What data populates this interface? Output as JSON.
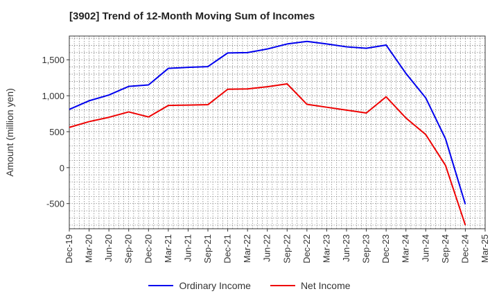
{
  "chart_data": {
    "type": "line",
    "title": "[3902]  Trend of 12-Month Moving Sum of Incomes",
    "xlabel": "",
    "ylabel": "Amount (million yen)",
    "ylim": [
      -850,
      1830
    ],
    "yticks": [
      -500,
      0,
      500,
      1000,
      1500
    ],
    "ytick_labels": [
      "-500",
      "0",
      "500",
      "1,000",
      "1,500"
    ],
    "categories": [
      "Dec-19",
      "Mar-20",
      "Jun-20",
      "Sep-20",
      "Dec-20",
      "Mar-21",
      "Jun-21",
      "Sep-21",
      "Dec-21",
      "Mar-22",
      "Jun-22",
      "Sep-22",
      "Dec-22",
      "Mar-23",
      "Jun-23",
      "Sep-23",
      "Dec-23",
      "Mar-24",
      "Jun-24",
      "Sep-24",
      "Dec-24",
      "Mar-25"
    ],
    "grid": true,
    "legend_position": "bottom-center",
    "series": [
      {
        "name": "Ordinary Income",
        "color": "#0000ee",
        "values": [
          810,
          930,
          1010,
          1130,
          1150,
          1380,
          1395,
          1405,
          1595,
          1600,
          1650,
          1720,
          1755,
          1720,
          1680,
          1660,
          1705,
          1310,
          970,
          400,
          -510,
          null
        ]
      },
      {
        "name": "Net Income",
        "color": "#ee0000",
        "values": [
          560,
          640,
          700,
          775,
          705,
          865,
          870,
          875,
          1090,
          1095,
          1125,
          1165,
          880,
          840,
          800,
          760,
          985,
          690,
          460,
          30,
          -800,
          null
        ]
      }
    ]
  }
}
